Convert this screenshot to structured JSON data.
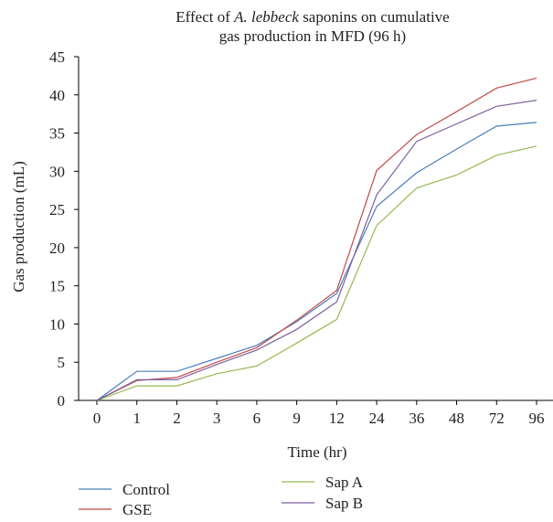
{
  "chart_data": {
    "type": "line",
    "title_line1_prefix": "Effect of ",
    "title_line1_italic": "A. lebbeck",
    "title_line1_suffix": " saponins on cumulative",
    "title_line2": "gas production in MFD (96 h)",
    "xlabel": "Time (hr)",
    "ylabel": "Gas production (mL)",
    "categories": [
      "0",
      "1",
      "2",
      "3",
      "6",
      "9",
      "12",
      "24",
      "36",
      "48",
      "72",
      "96"
    ],
    "ylim": [
      0,
      45
    ],
    "yticks": [
      "0",
      "5",
      "10",
      "15",
      "20",
      "25",
      "30",
      "35",
      "40",
      "45"
    ],
    "grid": false,
    "legend_position": "bottom",
    "series": [
      {
        "name": "Control",
        "color": "#4a7ebb",
        "values": [
          0,
          3.8,
          3.8,
          5.5,
          7.2,
          10.3,
          14.0,
          25.4,
          29.8,
          32.9,
          35.9,
          36.4
        ]
      },
      {
        "name": "GSE",
        "color": "#be4b48",
        "values": [
          0,
          2.6,
          3.0,
          5.0,
          6.9,
          10.5,
          14.4,
          30.1,
          34.8,
          37.8,
          40.9,
          42.2
        ]
      },
      {
        "name": "Sap A",
        "color": "#98b954",
        "values": [
          0,
          1.9,
          1.9,
          3.5,
          4.5,
          7.5,
          10.6,
          22.9,
          27.8,
          29.5,
          32.1,
          33.3
        ]
      },
      {
        "name": "Sap B",
        "color": "#7d60a0",
        "values": [
          0,
          2.7,
          2.7,
          4.7,
          6.6,
          9.3,
          12.9,
          26.9,
          33.9,
          36.2,
          38.5,
          39.3
        ]
      }
    ]
  }
}
